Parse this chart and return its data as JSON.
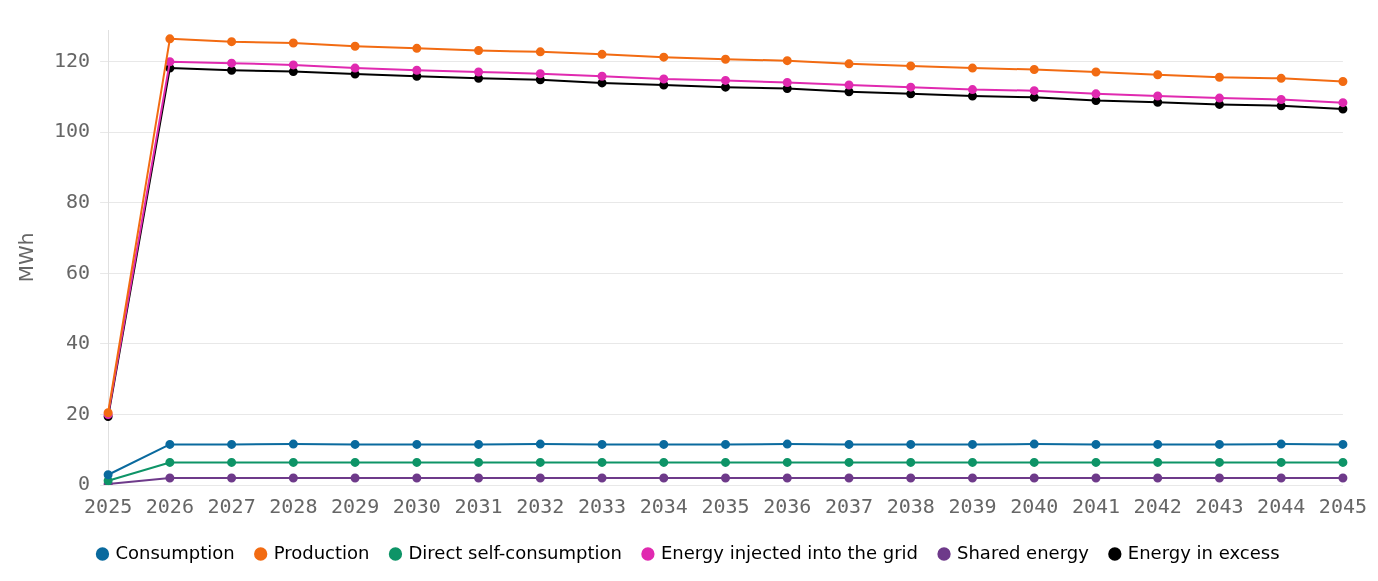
{
  "chart_data": {
    "type": "line",
    "ylabel": "MWh",
    "categories": [
      "2025",
      "2026",
      "2027",
      "2028",
      "2029",
      "2030",
      "2031",
      "2032",
      "2033",
      "2034",
      "2035",
      "2036",
      "2037",
      "2038",
      "2039",
      "2040",
      "2041",
      "2042",
      "2043",
      "2044",
      "2045"
    ],
    "ylim": [
      0,
      129
    ],
    "yticks": [
      0,
      20,
      40,
      60,
      80,
      100,
      120
    ],
    "grid": "y",
    "legend": "bottom",
    "marker": "circle",
    "line_style": "solid",
    "series": [
      {
        "name": "Consumption",
        "color": "#0a6a9e",
        "values": [
          2.9,
          11.5,
          11.5,
          11.6,
          11.5,
          11.5,
          11.5,
          11.6,
          11.5,
          11.5,
          11.5,
          11.6,
          11.5,
          11.5,
          11.5,
          11.6,
          11.5,
          11.5,
          11.5,
          11.6,
          11.5
        ]
      },
      {
        "name": "Production",
        "color": "#f26b12",
        "values": [
          20.5,
          126.5,
          125.7,
          125.3,
          124.4,
          123.8,
          123.2,
          122.8,
          122.1,
          121.3,
          120.7,
          120.3,
          119.4,
          118.8,
          118.2,
          117.8,
          117.1,
          116.3,
          115.6,
          115.3,
          114.4
        ]
      },
      {
        "name": "Direct self-consumption",
        "color": "#0e9467",
        "values": [
          1.2,
          6.4,
          6.4,
          6.4,
          6.4,
          6.4,
          6.4,
          6.4,
          6.4,
          6.4,
          6.4,
          6.4,
          6.4,
          6.4,
          6.4,
          6.4,
          6.4,
          6.4,
          6.4,
          6.4,
          6.4
        ]
      },
      {
        "name": "Energy injected into the grid",
        "color": "#e02ab0",
        "values": [
          20,
          120,
          119.6,
          119.1,
          118.2,
          117.6,
          117.1,
          116.6,
          115.9,
          115.1,
          114.7,
          114.1,
          113.4,
          112.8,
          112.1,
          111.8,
          110.9,
          110.3,
          109.7,
          109.3,
          108.4
        ]
      },
      {
        "name": "Shared energy",
        "color": "#6e3a8a",
        "values": [
          0.3,
          2,
          2,
          2,
          2,
          2,
          2,
          2,
          2,
          2,
          2,
          2,
          2,
          2,
          2,
          2,
          2,
          2,
          2,
          2,
          2
        ]
      },
      {
        "name": "Energy in excess",
        "color": "#000000",
        "values": [
          19.4,
          118.2,
          117.6,
          117.2,
          116.5,
          115.9,
          115.3,
          114.9,
          114,
          113.4,
          112.8,
          112.4,
          111.5,
          110.9,
          110.3,
          109.9,
          109,
          108.5,
          107.9,
          107.5,
          106.6
        ]
      }
    ]
  }
}
